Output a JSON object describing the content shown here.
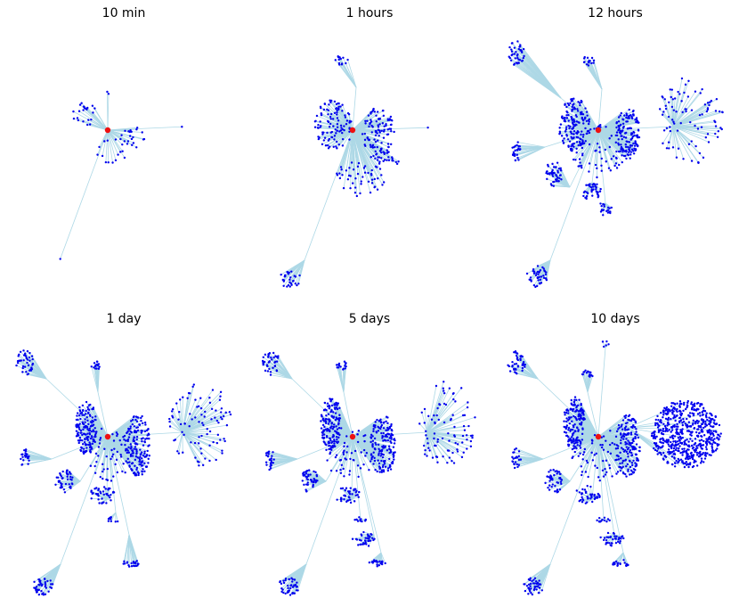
{
  "figure": {
    "panels": [
      {
        "title": "10 min"
      },
      {
        "title": "1 hours"
      },
      {
        "title": "12 hours"
      },
      {
        "title": "1 day"
      },
      {
        "title": "5 days"
      },
      {
        "title": "10 days"
      }
    ]
  },
  "colors": {
    "edge": "#add8e6",
    "node": "#0000ee",
    "root": "#ee1111"
  }
}
